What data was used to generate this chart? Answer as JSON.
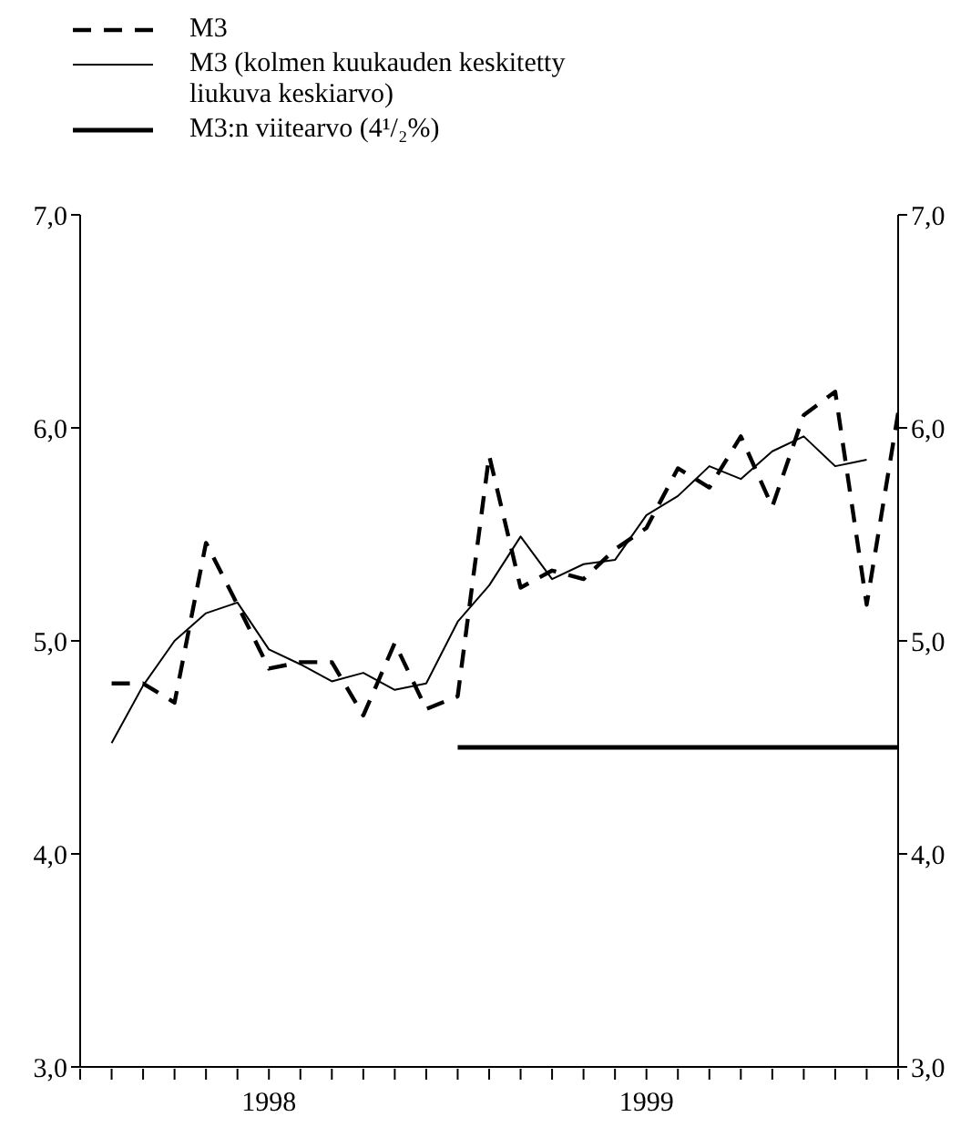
{
  "chart_data": {
    "type": "line",
    "legend": "top left",
    "tick_labels": true,
    "xlim": [
      "1998-01-01",
      "2000-03-01"
    ],
    "xticks": [
      {
        "value": "1998-01-01",
        "label": null
      },
      {
        "value": "1998-02-01",
        "label": null
      },
      {
        "value": "1998-03-01",
        "label": null
      },
      {
        "value": "1998-04-01",
        "label": null
      },
      {
        "value": "1998-05-01",
        "label": null
      },
      {
        "value": "1998-06-01",
        "label": null
      },
      {
        "value": "1998-07-01",
        "label": "1998"
      },
      {
        "value": "1998-08-01",
        "label": null
      },
      {
        "value": "1998-09-01",
        "label": null
      },
      {
        "value": "1998-10-01",
        "label": null
      },
      {
        "value": "1998-11-01",
        "label": null
      },
      {
        "value": "1998-12-01",
        "label": null
      },
      {
        "value": "1999-01-01",
        "label": null
      },
      {
        "value": "1999-02-01",
        "label": null
      },
      {
        "value": "1999-03-01",
        "label": null
      },
      {
        "value": "1999-04-01",
        "label": null
      },
      {
        "value": "1999-05-01",
        "label": null
      },
      {
        "value": "1999-06-01",
        "label": null
      },
      {
        "value": "1999-07-01",
        "label": "1999"
      },
      {
        "value": "1999-08-01",
        "label": null
      },
      {
        "value": "1999-09-01",
        "label": null
      },
      {
        "value": "1999-10-01",
        "label": null
      },
      {
        "value": "1999-11-01",
        "label": null
      },
      {
        "value": "1999-12-01",
        "label": null
      },
      {
        "value": "2000-01-01",
        "label": null
      },
      {
        "value": "2000-02-01",
        "label": null
      },
      {
        "value": "2000-03-01",
        "label": null
      }
    ],
    "ylim": [
      3,
      7
    ],
    "yticks": [
      {
        "value": 3,
        "label": "3,0"
      },
      {
        "value": 4,
        "label": "4,0"
      },
      {
        "value": 5,
        "label": "5,0"
      },
      {
        "value": 6,
        "label": "6,0"
      },
      {
        "value": 7,
        "label": "7,0"
      }
    ],
    "y2lim": [
      3,
      7
    ],
    "y2ticks": [
      {
        "value": 3,
        "label": "3,0"
      },
      {
        "value": 4,
        "label": "4,0"
      },
      {
        "value": 5,
        "label": "5,0"
      },
      {
        "value": 6,
        "label": "6,0"
      },
      {
        "value": 7,
        "label": "7,0"
      }
    ],
    "x": [
      "1998-01-31",
      "1998-02-28",
      "1998-03-31",
      "1998-04-30",
      "1998-05-31",
      "1998-06-30",
      "1998-07-31",
      "1998-08-31",
      "1998-09-30",
      "1998-10-31",
      "1998-11-30",
      "1998-12-31",
      "1999-01-31",
      "1999-02-28",
      "1999-03-31",
      "1999-04-30",
      "1999-05-31",
      "1999-06-30",
      "1999-07-31",
      "1999-08-31",
      "1999-09-30",
      "1999-10-31",
      "1999-11-30",
      "1999-12-31",
      "2000-01-31",
      "2000-02-29"
    ],
    "series": [
      {
        "name": "M3",
        "color": "#000000",
        "line_style": "dashed",
        "values": [
          4.8,
          4.8,
          4.71,
          5.46,
          5.17,
          4.87,
          4.9,
          4.9,
          4.65,
          4.99,
          4.68,
          4.74,
          5.87,
          5.25,
          5.33,
          5.29,
          5.43,
          5.53,
          5.81,
          5.72,
          5.96,
          5.63,
          6.06,
          6.17,
          5.17,
          6.07
        ]
      },
      {
        "name": "M3 (kolmen kuukauden keskitetty liukuva keskiarvo)",
        "color": "#000000",
        "line_style": "solid",
        "values": [
          4.52,
          4.79,
          5.0,
          5.13,
          5.18,
          4.96,
          4.89,
          4.81,
          4.85,
          4.77,
          4.8,
          5.09,
          5.26,
          5.49,
          5.29,
          5.36,
          5.38,
          5.59,
          5.68,
          5.82,
          5.76,
          5.89,
          5.96,
          5.82,
          5.85,
          null
        ]
      },
      {
        "name": "M3:n viitearvo (4¹/₂%)",
        "color": "#000000",
        "line_style": "solid",
        "x": [
          "1999-01-01",
          "2000-03-01"
        ],
        "values": [
          4.5,
          4.5
        ]
      }
    ]
  }
}
